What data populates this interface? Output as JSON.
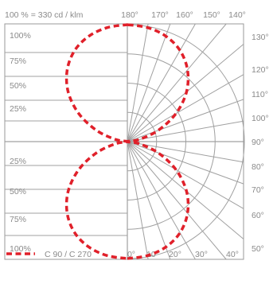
{
  "header_text": "100 % = 330 cd / klm",
  "legend": {
    "label": "C 90 / C 270",
    "color": "#e0202a"
  },
  "colors": {
    "grid": "#a0a0a0",
    "frame": "#9a9a9a",
    "text": "#8a8a8a",
    "curve": "#e0202a"
  },
  "chart_data": {
    "type": "polar-luminous-intensity",
    "units": "cd/klm",
    "max_intensity": 330,
    "top_angle_labels": [
      "180°",
      "170°",
      "160°",
      "150°",
      "140°"
    ],
    "bottom_angle_labels": [
      "0°",
      "10°",
      "20°",
      "30°",
      "40°"
    ],
    "right_angle_labels": [
      "130°",
      "120°",
      "110°",
      "100°",
      "90°",
      "80°",
      "70°",
      "60°",
      "50°"
    ],
    "left_upper_percent_labels": [
      "100%",
      "75%",
      "50%",
      "25%"
    ],
    "left_lower_percent_labels": [
      "25%",
      "50%",
      "75%",
      "100%"
    ],
    "gamma_spoke_step_deg": 10,
    "series": [
      {
        "name": "C 90 / C 270",
        "style": "dashed",
        "gamma_deg": [
          0,
          10,
          20,
          30,
          40,
          50,
          60,
          70,
          80,
          90,
          100,
          110,
          120,
          130,
          140,
          150,
          160,
          170,
          180
        ],
        "intensity_percent": [
          100,
          99,
          96,
          90,
          80,
          66,
          48,
          28,
          10,
          0,
          10,
          28,
          48,
          66,
          80,
          90,
          96,
          99,
          100
        ]
      }
    ]
  }
}
